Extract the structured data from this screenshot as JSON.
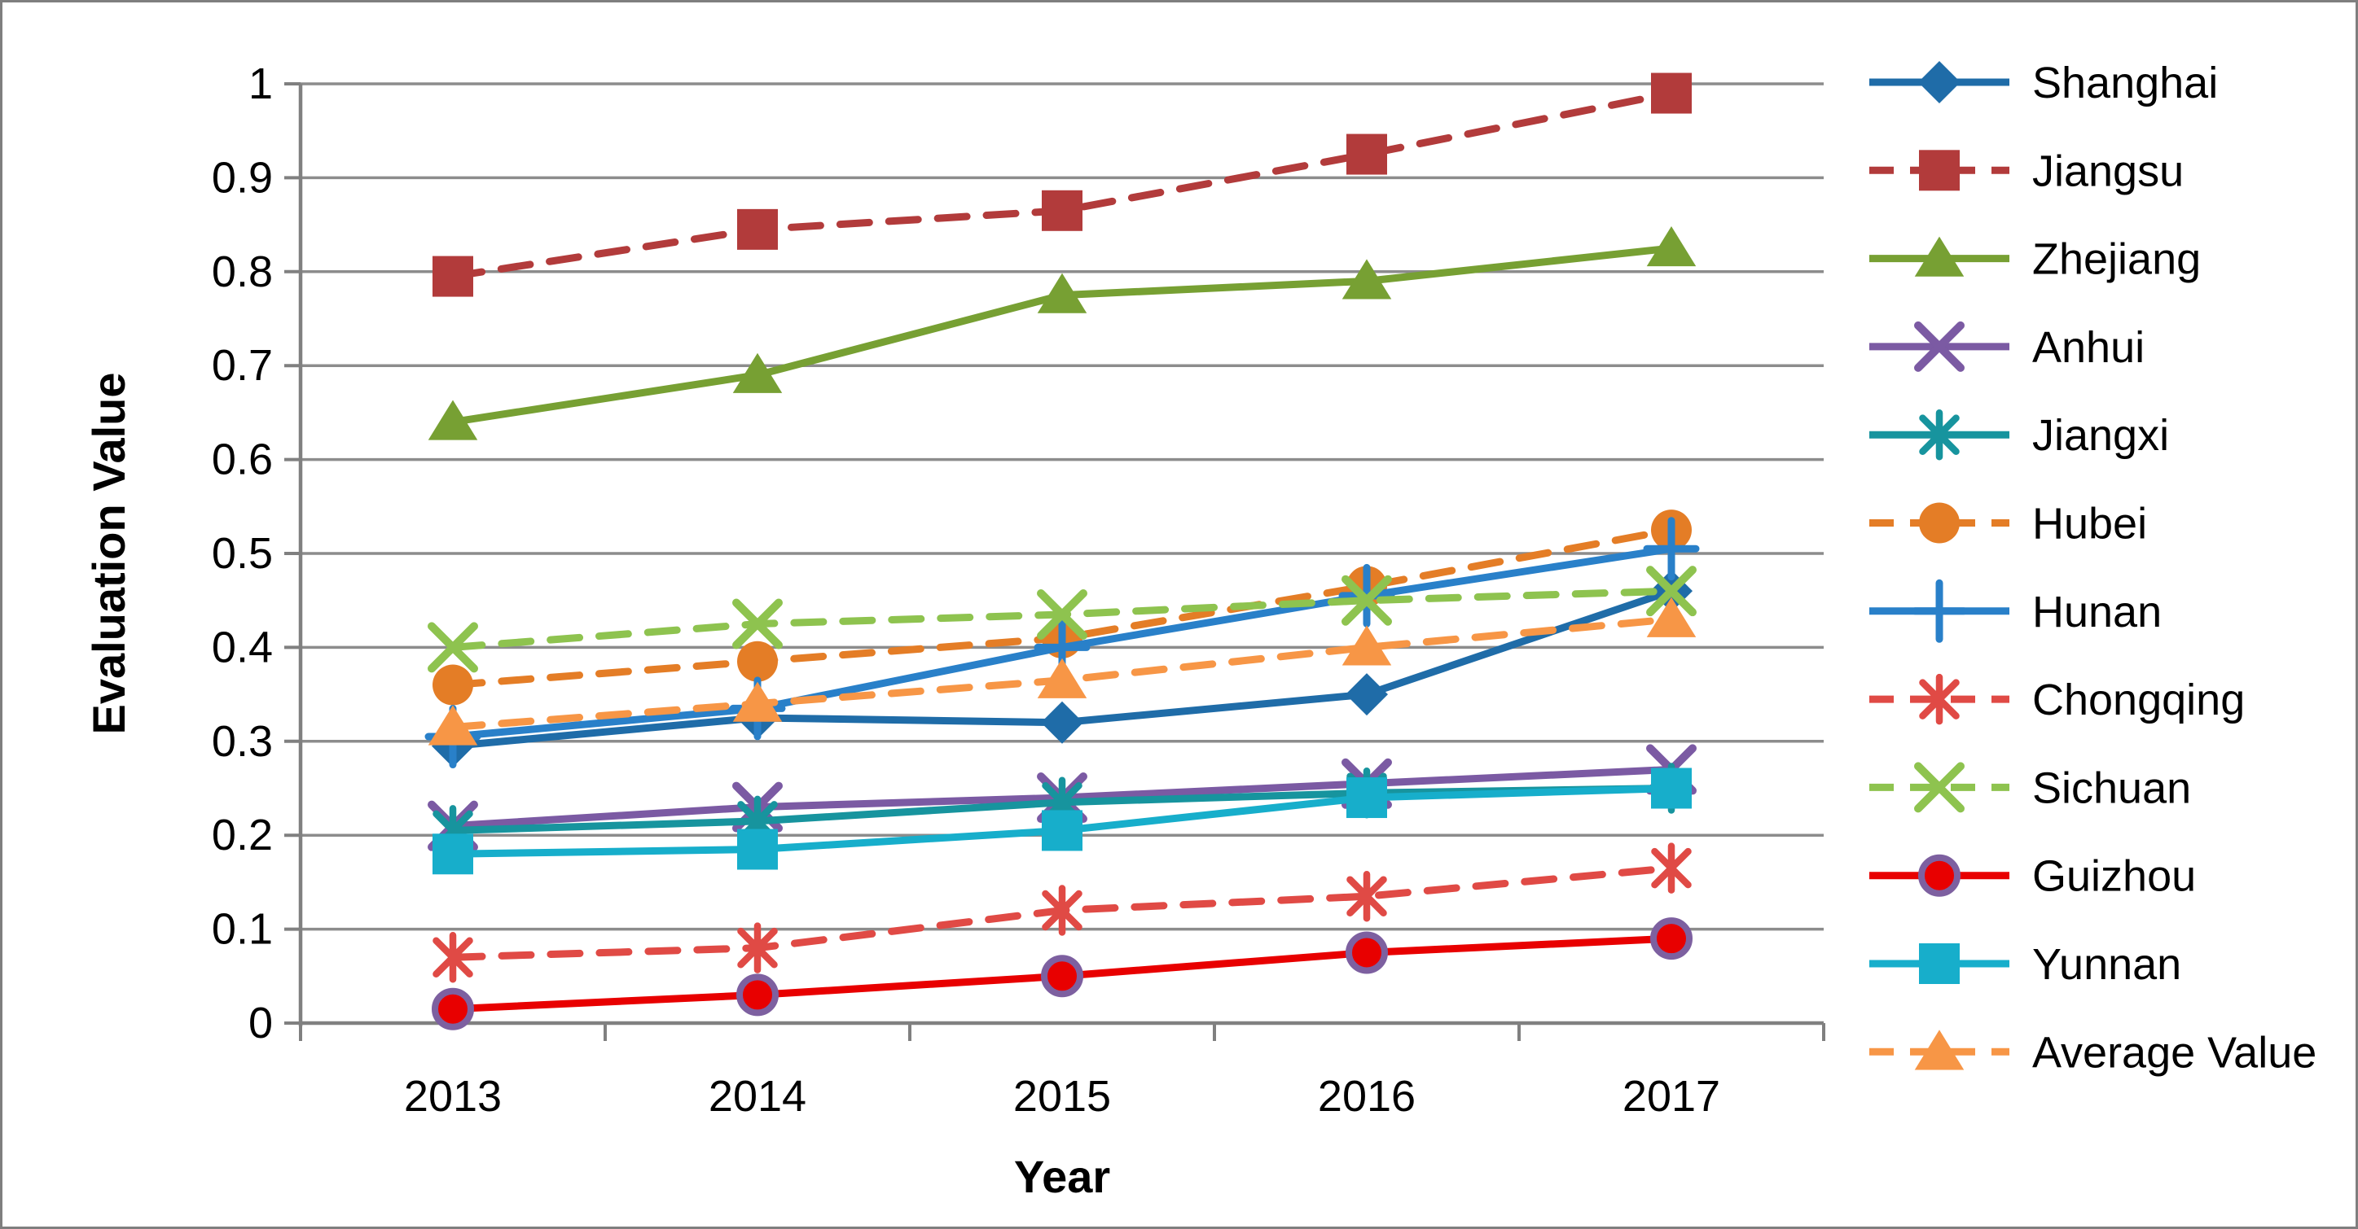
{
  "figure": {
    "background": "#ffffff",
    "border_color": "#7f7f7f",
    "gridline_color": "#8c8c8c",
    "axis_color": "#808080"
  },
  "chart_data": {
    "type": "line",
    "title": "",
    "xlabel": "Year",
    "ylabel": "Evaluation Value",
    "categories": [
      "2013",
      "2014",
      "2015",
      "2016",
      "2017"
    ],
    "ylim": [
      0,
      1
    ],
    "ytick_step": 0.1,
    "ytick_labels": [
      "0",
      "0.1",
      "0.2",
      "0.3",
      "0.4",
      "0.5",
      "0.6",
      "0.7",
      "0.8",
      "0.9",
      "1"
    ],
    "grid": true,
    "legend_position": "right",
    "series": [
      {
        "name": "Shanghai",
        "values": [
          0.295,
          0.325,
          0.32,
          0.35,
          0.46
        ],
        "color": "#1f6ca8",
        "dashed": false,
        "marker": "diamond"
      },
      {
        "name": "Jiangsu",
        "values": [
          0.795,
          0.845,
          0.865,
          0.925,
          0.99
        ],
        "color": "#b23b3b",
        "dashed": true,
        "marker": "square"
      },
      {
        "name": "Zhejiang",
        "values": [
          0.64,
          0.69,
          0.775,
          0.79,
          0.825
        ],
        "color": "#77a033",
        "dashed": false,
        "marker": "triangle"
      },
      {
        "name": "Anhui",
        "values": [
          0.21,
          0.23,
          0.24,
          0.255,
          0.27
        ],
        "color": "#7b5aa3",
        "dashed": false,
        "marker": "x"
      },
      {
        "name": "Jiangxi",
        "values": [
          0.205,
          0.215,
          0.235,
          0.245,
          0.25
        ],
        "color": "#17949e",
        "dashed": false,
        "marker": "asterisk"
      },
      {
        "name": "Hubei",
        "values": [
          0.36,
          0.385,
          0.41,
          0.465,
          0.525
        ],
        "color": "#e47d26",
        "dashed": true,
        "marker": "circle"
      },
      {
        "name": "Hunan",
        "values": [
          0.305,
          0.335,
          0.4,
          0.455,
          0.505
        ],
        "color": "#2980c9",
        "dashed": false,
        "marker": "plus"
      },
      {
        "name": "Chongqing",
        "values": [
          0.07,
          0.08,
          0.12,
          0.135,
          0.165
        ],
        "color": "#e04a45",
        "dashed": true,
        "marker": "asterisk"
      },
      {
        "name": "Sichuan",
        "values": [
          0.4,
          0.425,
          0.435,
          0.45,
          0.46
        ],
        "color": "#8ec34f",
        "dashed": true,
        "marker": "x"
      },
      {
        "name": "Guizhou",
        "values": [
          0.015,
          0.03,
          0.05,
          0.075,
          0.09
        ],
        "color": "#e80000",
        "dashed": false,
        "marker": "circle-ring",
        "marker_ring_color": "#7d60a0"
      },
      {
        "name": "Yunnan",
        "values": [
          0.18,
          0.185,
          0.205,
          0.24,
          0.25
        ],
        "color": "#17aecb",
        "dashed": false,
        "marker": "square"
      },
      {
        "name": "Average Value",
        "values": [
          0.315,
          0.34,
          0.365,
          0.4,
          0.43
        ],
        "color": "#f79646",
        "dashed": true,
        "marker": "triangle"
      }
    ]
  }
}
